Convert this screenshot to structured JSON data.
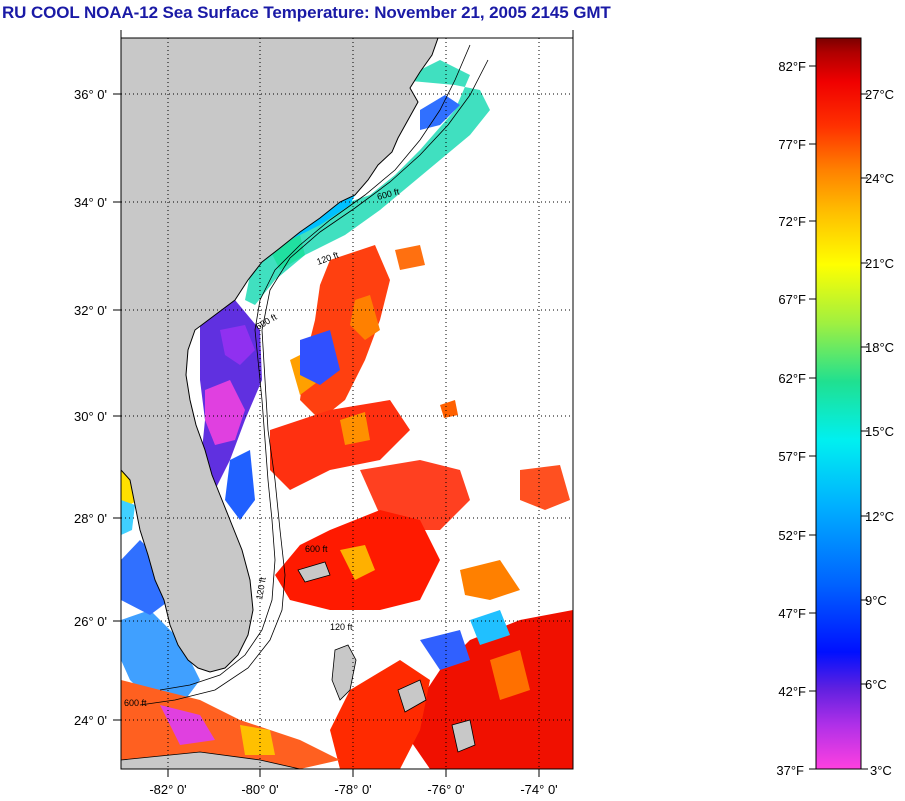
{
  "title": "RU COOL  NOAA-12  Sea Surface Temperature:  November 21, 2005 2145 GMT",
  "map": {
    "lat_labels": [
      "24° 0'",
      "26° 0'",
      "28° 0'",
      "30° 0'",
      "32° 0'",
      "34° 0'",
      "36° 0'"
    ],
    "lon_labels": [
      "-82° 0'",
      "-80° 0'",
      "-78° 0'",
      "-76° 0'",
      "-74° 0'"
    ],
    "lat_range": [
      23.0,
      37.2
    ],
    "lon_range": [
      -83.0,
      -73.0
    ],
    "grid": "dotted",
    "land_color": "#c8c8c8",
    "no_data_color": "#ffffff",
    "isobath_labels": [
      "600 ft",
      "120 ft",
      "600 ft",
      "120 ft",
      "600 ft",
      "120 ft",
      "600 ft"
    ]
  },
  "colorbar": {
    "fahrenheit_labels": [
      "82°F",
      "77°F",
      "72°F",
      "67°F",
      "62°F",
      "57°F",
      "52°F",
      "47°F",
      "42°F",
      "37°F"
    ],
    "celsius_labels": [
      "27°C",
      "24°C",
      "21°C",
      "18°C",
      "15°C",
      "12°C",
      "9°C",
      "6°C",
      "3°C"
    ],
    "range_c": [
      2.8,
      28.3
    ],
    "colors": [
      "#ff40e0",
      "#b030e8",
      "#6020e0",
      "#0010ff",
      "#0060ff",
      "#00b0ff",
      "#00f0f0",
      "#20e090",
      "#a0f040",
      "#ffff00",
      "#ffc000",
      "#ff8000",
      "#ff3000",
      "#f00000",
      "#b00000",
      "#7a0000"
    ]
  }
}
